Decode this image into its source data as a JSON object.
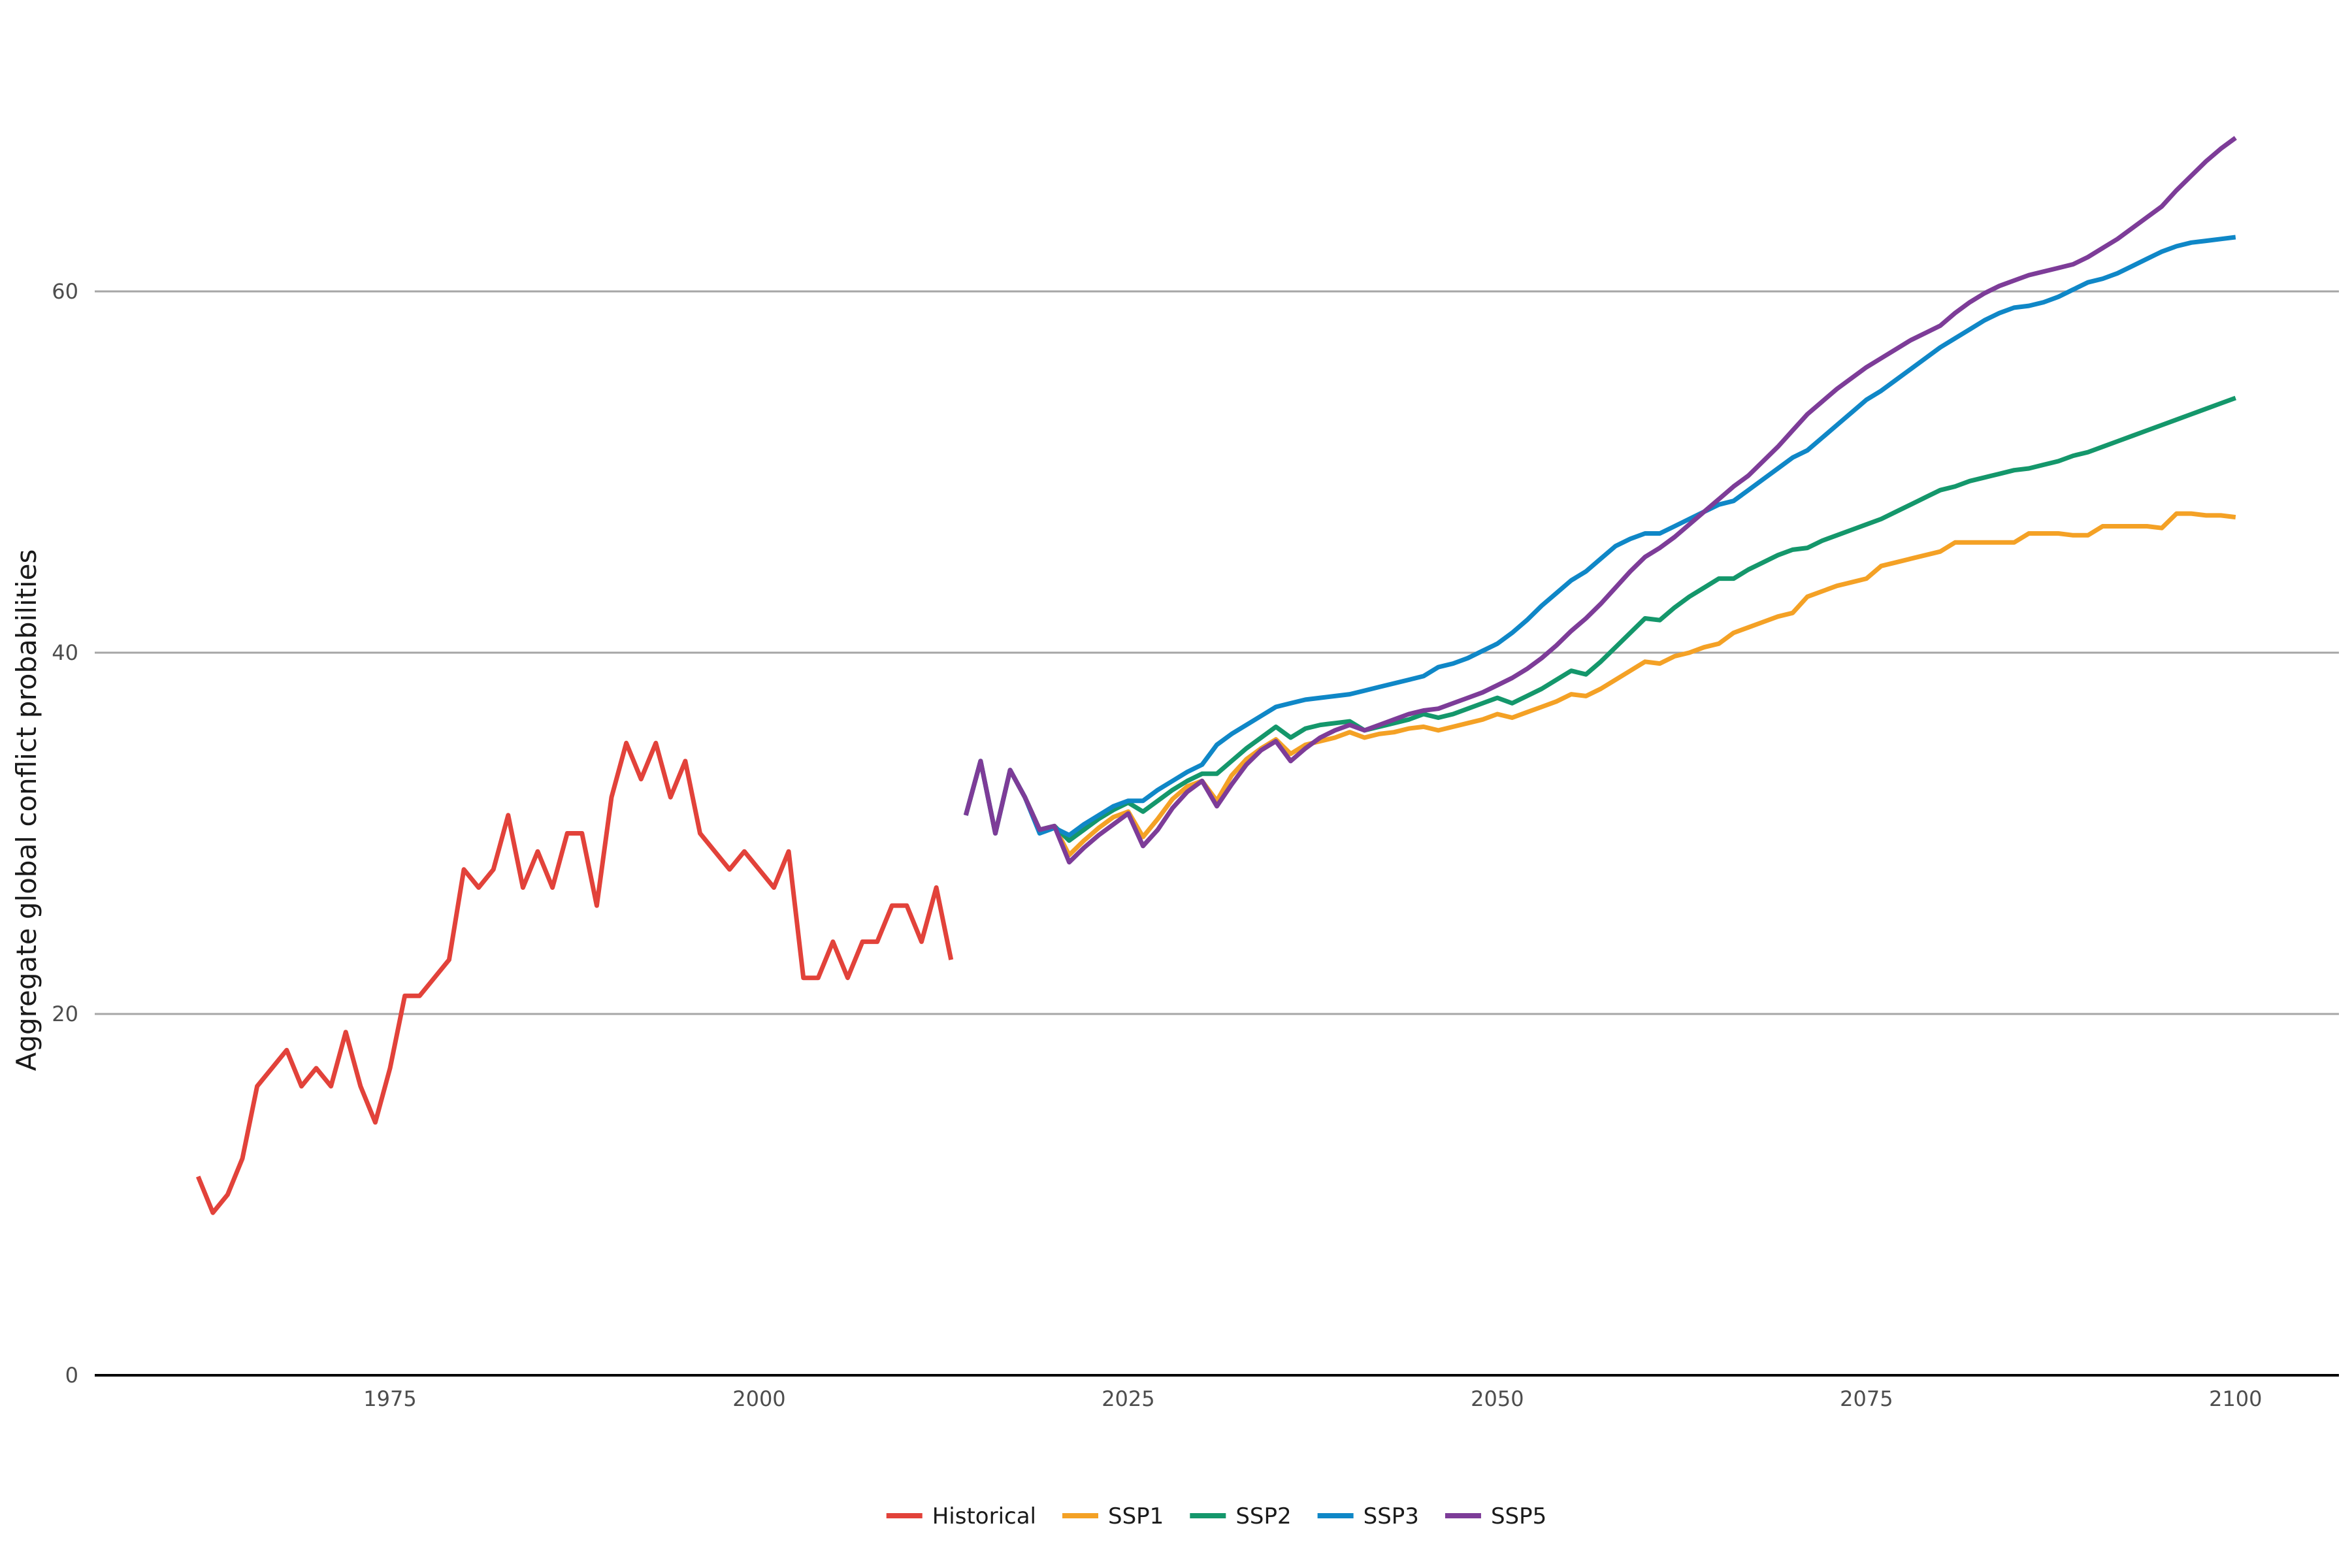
{
  "chart_data": {
    "type": "line",
    "title": "",
    "xlabel": "",
    "ylabel": "Aggregate global conflict probabilities",
    "xlim": [
      1955,
      2107
    ],
    "ylim": [
      0,
      70
    ],
    "x_ticks": [
      1975,
      2000,
      2025,
      2050,
      2075,
      2100
    ],
    "y_ticks": [
      0,
      20,
      40,
      60
    ],
    "grid": "horizontal major gridlines",
    "legend_position": "bottom",
    "series": [
      {
        "name": "Historical",
        "color": "#E2423A",
        "x": [
          1962,
          1963,
          1964,
          1965,
          1966,
          1967,
          1968,
          1969,
          1970,
          1971,
          1972,
          1973,
          1974,
          1975,
          1976,
          1977,
          1978,
          1979,
          1980,
          1981,
          1982,
          1983,
          1984,
          1985,
          1986,
          1987,
          1988,
          1989,
          1990,
          1991,
          1992,
          1993,
          1994,
          1995,
          1996,
          1997,
          1998,
          1999,
          2000,
          2001,
          2002,
          2003,
          2004,
          2005,
          2006,
          2007,
          2008,
          2009,
          2010,
          2011,
          2012,
          2013
        ],
        "y": [
          11,
          9,
          10,
          12,
          16,
          17,
          18,
          16,
          17,
          16,
          19,
          16,
          14,
          17,
          21,
          21,
          22,
          23,
          28,
          27,
          28,
          31,
          27,
          29,
          27,
          30,
          30,
          26,
          32,
          35,
          33,
          35,
          32,
          34,
          30,
          29,
          28,
          29,
          28,
          27,
          29,
          22,
          22,
          24,
          22,
          24,
          24,
          26,
          26,
          24,
          27,
          23
        ]
      },
      {
        "name": "SSP1",
        "color": "#F4A125",
        "x": [
          2014,
          2015,
          2016,
          2017,
          2018,
          2019,
          2020,
          2021,
          2022,
          2023,
          2024,
          2025,
          2026,
          2027,
          2028,
          2029,
          2030,
          2031,
          2032,
          2033,
          2034,
          2035,
          2036,
          2037,
          2038,
          2039,
          2040,
          2041,
          2042,
          2043,
          2044,
          2045,
          2046,
          2047,
          2048,
          2049,
          2050,
          2051,
          2052,
          2053,
          2054,
          2055,
          2056,
          2057,
          2058,
          2059,
          2060,
          2061,
          2062,
          2063,
          2064,
          2065,
          2066,
          2067,
          2068,
          2069,
          2070,
          2071,
          2072,
          2073,
          2074,
          2075,
          2076,
          2077,
          2078,
          2079,
          2080,
          2081,
          2082,
          2083,
          2084,
          2085,
          2086,
          2087,
          2088,
          2089,
          2090,
          2091,
          2092,
          2093,
          2094,
          2095,
          2096,
          2097,
          2098,
          2099,
          2100
        ],
        "y": [
          31,
          34,
          30,
          33.5,
          32,
          30.2,
          30.4,
          28.8,
          29.6,
          30.3,
          30.9,
          31.2,
          29.8,
          30.8,
          31.9,
          32.6,
          32.9,
          31.8,
          33.2,
          34.1,
          34.7,
          35.2,
          34.4,
          34.9,
          35.1,
          35.3,
          35.6,
          35.3,
          35.5,
          35.6,
          35.8,
          35.9,
          35.7,
          35.9,
          36.1,
          36.3,
          36.6,
          36.4,
          36.7,
          37.0,
          37.3,
          37.7,
          37.6,
          38.0,
          38.5,
          39.0,
          39.5,
          39.4,
          39.8,
          40.0,
          40.3,
          40.5,
          41.1,
          41.4,
          41.7,
          42.0,
          42.2,
          43.1,
          43.4,
          43.7,
          43.9,
          44.1,
          44.8,
          45.0,
          45.2,
          45.4,
          45.6,
          46.1,
          46.1,
          46.1,
          46.1,
          46.1,
          46.6,
          46.6,
          46.6,
          46.5,
          46.5,
          47.0,
          47.0,
          47.0,
          47.0,
          46.9,
          47.7,
          47.7,
          47.6,
          47.6,
          47.5
        ]
      },
      {
        "name": "SSP2",
        "color": "#14976B",
        "x": [
          2014,
          2015,
          2016,
          2017,
          2018,
          2019,
          2020,
          2021,
          2022,
          2023,
          2024,
          2025,
          2026,
          2027,
          2028,
          2029,
          2030,
          2031,
          2032,
          2033,
          2034,
          2035,
          2036,
          2037,
          2038,
          2039,
          2040,
          2041,
          2042,
          2043,
          2044,
          2045,
          2046,
          2047,
          2048,
          2049,
          2050,
          2051,
          2052,
          2053,
          2054,
          2055,
          2056,
          2057,
          2058,
          2059,
          2060,
          2061,
          2062,
          2063,
          2064,
          2065,
          2066,
          2067,
          2068,
          2069,
          2070,
          2071,
          2072,
          2073,
          2074,
          2075,
          2076,
          2077,
          2078,
          2079,
          2080,
          2081,
          2082,
          2083,
          2084,
          2085,
          2086,
          2087,
          2088,
          2089,
          2090,
          2091,
          2092,
          2093,
          2094,
          2095,
          2096,
          2097,
          2098,
          2099,
          2100
        ],
        "y": [
          31,
          34,
          30,
          33.5,
          32,
          30.2,
          30.4,
          29.6,
          30.2,
          30.8,
          31.3,
          31.7,
          31.2,
          31.8,
          32.4,
          32.9,
          33.3,
          33.3,
          34.0,
          34.7,
          35.3,
          35.9,
          35.3,
          35.8,
          36.0,
          36.1,
          36.2,
          35.7,
          35.9,
          36.1,
          36.3,
          36.6,
          36.4,
          36.6,
          36.9,
          37.2,
          37.5,
          37.2,
          37.6,
          38.0,
          38.5,
          39.0,
          38.8,
          39.5,
          40.3,
          41.1,
          41.9,
          41.8,
          42.5,
          43.1,
          43.6,
          44.1,
          44.1,
          44.6,
          45.0,
          45.4,
          45.7,
          45.8,
          46.2,
          46.5,
          46.8,
          47.1,
          47.4,
          47.8,
          48.2,
          48.6,
          49.0,
          49.2,
          49.5,
          49.7,
          49.9,
          50.1,
          50.2,
          50.4,
          50.6,
          50.9,
          51.1,
          51.4,
          51.7,
          52.0,
          52.3,
          52.6,
          52.9,
          53.2,
          53.5,
          53.8,
          54.1
        ]
      },
      {
        "name": "SSP3",
        "color": "#0F87C7",
        "x": [
          2014,
          2015,
          2016,
          2017,
          2018,
          2019,
          2020,
          2021,
          2022,
          2023,
          2024,
          2025,
          2026,
          2027,
          2028,
          2029,
          2030,
          2031,
          2032,
          2033,
          2034,
          2035,
          2036,
          2037,
          2038,
          2039,
          2040,
          2041,
          2042,
          2043,
          2044,
          2045,
          2046,
          2047,
          2048,
          2049,
          2050,
          2051,
          2052,
          2053,
          2054,
          2055,
          2056,
          2057,
          2058,
          2059,
          2060,
          2061,
          2062,
          2063,
          2064,
          2065,
          2066,
          2067,
          2068,
          2069,
          2070,
          2071,
          2072,
          2073,
          2074,
          2075,
          2076,
          2077,
          2078,
          2079,
          2080,
          2081,
          2082,
          2083,
          2084,
          2085,
          2086,
          2087,
          2088,
          2089,
          2090,
          2091,
          2092,
          2093,
          2094,
          2095,
          2096,
          2097,
          2098,
          2099,
          2100
        ],
        "y": [
          31,
          34,
          30,
          33.5,
          32,
          30.0,
          30.3,
          29.9,
          30.5,
          31.0,
          31.5,
          31.8,
          31.8,
          32.4,
          32.9,
          33.4,
          33.8,
          34.9,
          35.5,
          36.0,
          36.5,
          37.0,
          37.2,
          37.4,
          37.5,
          37.6,
          37.7,
          37.9,
          38.1,
          38.3,
          38.5,
          38.7,
          39.2,
          39.4,
          39.7,
          40.1,
          40.5,
          41.1,
          41.8,
          42.6,
          43.3,
          44.0,
          44.5,
          45.2,
          45.9,
          46.3,
          46.6,
          46.6,
          47.0,
          47.4,
          47.8,
          48.2,
          48.4,
          49.0,
          49.6,
          50.2,
          50.8,
          51.2,
          51.9,
          52.6,
          53.3,
          54.0,
          54.5,
          55.1,
          55.7,
          56.3,
          56.9,
          57.4,
          57.9,
          58.4,
          58.8,
          59.1,
          59.2,
          59.4,
          59.7,
          60.1,
          60.5,
          60.7,
          61.0,
          61.4,
          61.8,
          62.2,
          62.5,
          62.7,
          62.8,
          62.9,
          63.0
        ]
      },
      {
        "name": "SSP5",
        "color": "#7D3C98",
        "x": [
          2014,
          2015,
          2016,
          2017,
          2018,
          2019,
          2020,
          2021,
          2022,
          2023,
          2024,
          2025,
          2026,
          2027,
          2028,
          2029,
          2030,
          2031,
          2032,
          2033,
          2034,
          2035,
          2036,
          2037,
          2038,
          2039,
          2040,
          2041,
          2042,
          2043,
          2044,
          2045,
          2046,
          2047,
          2048,
          2049,
          2050,
          2051,
          2052,
          2053,
          2054,
          2055,
          2056,
          2057,
          2058,
          2059,
          2060,
          2061,
          2062,
          2063,
          2064,
          2065,
          2066,
          2067,
          2068,
          2069,
          2070,
          2071,
          2072,
          2073,
          2074,
          2075,
          2076,
          2077,
          2078,
          2079,
          2080,
          2081,
          2082,
          2083,
          2084,
          2085,
          2086,
          2087,
          2088,
          2089,
          2090,
          2091,
          2092,
          2093,
          2094,
          2095,
          2096,
          2097,
          2098,
          2099,
          2100
        ],
        "y": [
          31,
          34,
          30,
          33.5,
          32,
          30.2,
          30.4,
          28.4,
          29.2,
          29.9,
          30.5,
          31.1,
          29.3,
          30.2,
          31.4,
          32.3,
          32.9,
          31.5,
          32.7,
          33.8,
          34.6,
          35.1,
          34.0,
          34.7,
          35.3,
          35.7,
          36.0,
          35.7,
          36.0,
          36.3,
          36.6,
          36.8,
          36.9,
          37.2,
          37.5,
          37.8,
          38.2,
          38.6,
          39.1,
          39.7,
          40.4,
          41.2,
          41.9,
          42.7,
          43.6,
          44.5,
          45.3,
          45.8,
          46.4,
          47.1,
          47.8,
          48.5,
          49.2,
          49.8,
          50.6,
          51.4,
          52.3,
          53.2,
          53.9,
          54.6,
          55.2,
          55.8,
          56.3,
          56.8,
          57.3,
          57.7,
          58.1,
          58.8,
          59.4,
          59.9,
          60.3,
          60.6,
          60.9,
          61.1,
          61.3,
          61.5,
          61.9,
          62.4,
          62.9,
          63.5,
          64.1,
          64.7,
          65.6,
          66.4,
          67.2,
          67.9,
          68.5
        ]
      }
    ]
  }
}
